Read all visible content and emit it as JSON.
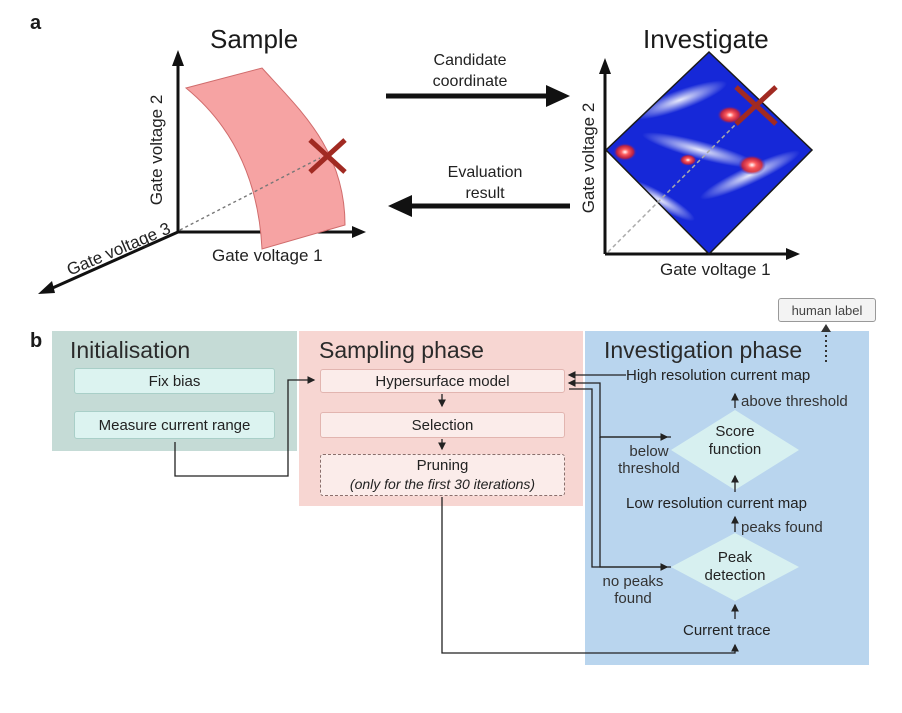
{
  "panel_a": {
    "letter": "a",
    "sample_title": "Sample",
    "investigate_title": "Investigate",
    "left_axes": {
      "y": "Gate voltage 2",
      "x": "Gate voltage 1",
      "z": "Gate voltage 3"
    },
    "right_axes": {
      "y": "Gate voltage 2",
      "x": "Gate voltage 1"
    },
    "arrow_forward_label": [
      "Candidate",
      "coordinate"
    ],
    "arrow_back_label": [
      "Evaluation",
      "result"
    ]
  },
  "panel_b": {
    "letter": "b",
    "human_label": "human label",
    "init": {
      "title": "Initialisation",
      "boxes": [
        "Fix bias",
        "Measure current range"
      ]
    },
    "sampling": {
      "title": "Sampling phase",
      "boxes": [
        "Hypersurface model",
        "Selection"
      ],
      "pruning": "Pruning",
      "pruning_note": "(only for the first 30 iterations)"
    },
    "investigation": {
      "title": "Investigation phase",
      "high_res": "High resolution current map",
      "above_threshold": "above threshold",
      "score": [
        "Score",
        "function"
      ],
      "below_threshold": [
        "below",
        "threshold"
      ],
      "low_res": "Low resolution current map",
      "peaks_found": "peaks found",
      "peak_detection": [
        "Peak",
        "detection"
      ],
      "no_peaks": [
        "no peaks",
        "found"
      ],
      "current_trace": "Current trace"
    }
  },
  "colors": {
    "init_bg": "#c5dbd6",
    "sampling_bg": "#f7d6d2",
    "investigation_bg": "#b9d5ee",
    "surface": "#f6a3a3",
    "cross": "#a12a22",
    "map_blue": "#1628d8",
    "diamond": "#d7f0f0"
  }
}
